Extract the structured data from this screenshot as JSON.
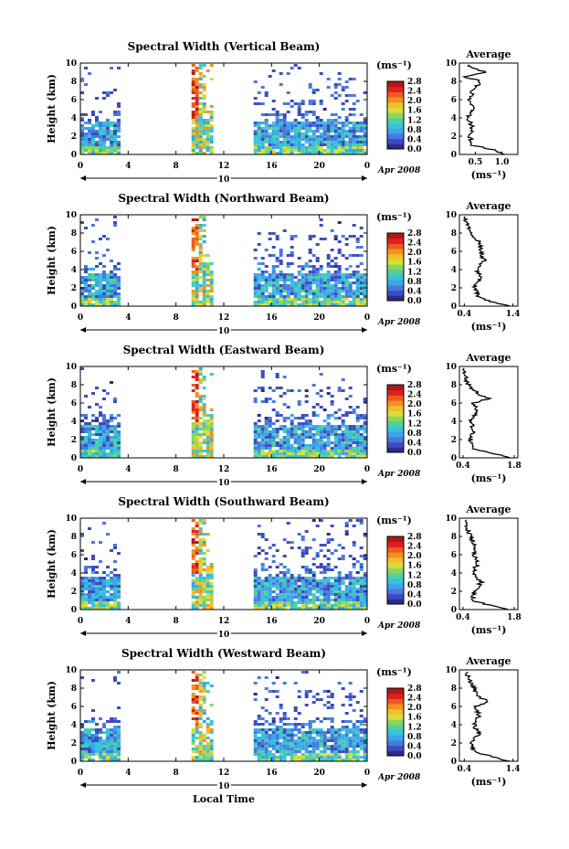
{
  "figure": {
    "common": {
      "height_label": "Height (km)",
      "unit_label": "(ms⁻¹)",
      "date_label": "Apr 2008",
      "day_label": "10",
      "xlabel": "Local Time",
      "avg_title": "Average",
      "avg_xlabel": "(ms⁻¹)"
    },
    "colorbar": {
      "ticks": [
        "0.0",
        "0.4",
        "0.8",
        "1.2",
        "1.6",
        "2.0",
        "2.4",
        "2.8"
      ],
      "colors": [
        "#2b2b8c",
        "#3b4cc0",
        "#4a78e0",
        "#3aa6e8",
        "#37c3d8",
        "#4fd0a0",
        "#8ed65b",
        "#d6df3a",
        "#f0c02a",
        "#f59020",
        "#f05a1e",
        "#e02020",
        "#b01818"
      ]
    }
  },
  "chart_data": [
    {
      "type": "heatmap",
      "title": "Spectral Width (Vertical Beam)",
      "xlabel": "Local Time",
      "ylabel": "Height (km)",
      "xlim": [
        0,
        24
      ],
      "ylim": [
        0,
        10
      ],
      "x_ticks": [
        "0",
        "4",
        "8",
        "12",
        "16",
        "20",
        "0"
      ],
      "y_ticks": [
        "0",
        "2",
        "4",
        "6",
        "8",
        "10"
      ],
      "colorbar_unit": "ms-1",
      "colorbar_range": [
        0.0,
        2.8
      ],
      "data_blocks": [
        [
          0.0,
          3.2
        ],
        [
          9.3,
          11.2
        ],
        [
          14.5,
          24.0
        ]
      ],
      "average_profile": {
        "x_ticks": [
          "0.5",
          "1.0"
        ],
        "xlim": [
          0.2,
          1.3
        ],
        "height_km": [
          0,
          0.5,
          1,
          2,
          3,
          4,
          5,
          6,
          7,
          8,
          8.5,
          9,
          9.5
        ],
        "width_ms": [
          1.05,
          0.85,
          0.45,
          0.4,
          0.45,
          0.35,
          0.45,
          0.4,
          0.45,
          0.6,
          0.3,
          0.7,
          0.4
        ]
      }
    },
    {
      "type": "heatmap",
      "title": "Spectral Width (Northward Beam)",
      "xlabel": "Local Time",
      "ylabel": "Height (km)",
      "xlim": [
        0,
        24
      ],
      "ylim": [
        0,
        10
      ],
      "x_ticks": [
        "0",
        "4",
        "8",
        "12",
        "16",
        "20",
        "0"
      ],
      "y_ticks": [
        "0",
        "2",
        "4",
        "6",
        "8",
        "10"
      ],
      "colorbar_unit": "ms-1",
      "colorbar_range": [
        0.0,
        2.8
      ],
      "data_blocks": [
        [
          0.0,
          3.2
        ],
        [
          9.3,
          11.2
        ],
        [
          14.5,
          24.0
        ]
      ],
      "average_profile": {
        "x_ticks": [
          "0.4",
          "1.4"
        ],
        "xlim": [
          0.3,
          1.5
        ],
        "height_km": [
          0,
          0.5,
          1,
          2,
          3,
          4,
          5,
          6,
          7,
          8,
          9,
          9.7
        ],
        "width_ms": [
          1.3,
          0.95,
          0.7,
          0.6,
          0.75,
          0.65,
          0.8,
          0.75,
          0.7,
          0.55,
          0.45,
          0.4
        ]
      }
    },
    {
      "type": "heatmap",
      "title": "Spectral Width (Eastward Beam)",
      "xlabel": "Local Time",
      "ylabel": "Height (km)",
      "xlim": [
        0,
        24
      ],
      "ylim": [
        0,
        10
      ],
      "x_ticks": [
        "0",
        "4",
        "8",
        "12",
        "16",
        "20",
        "0"
      ],
      "y_ticks": [
        "0",
        "2",
        "4",
        "6",
        "8",
        "10"
      ],
      "colorbar_unit": "ms-1",
      "colorbar_range": [
        0.0,
        2.8
      ],
      "data_blocks": [
        [
          0.0,
          3.2
        ],
        [
          9.3,
          11.2
        ],
        [
          14.5,
          24.0
        ]
      ],
      "average_profile": {
        "x_ticks": [
          "0.4",
          "1.8"
        ],
        "xlim": [
          0.3,
          1.9
        ],
        "height_km": [
          0,
          0.5,
          1,
          2,
          3,
          4,
          5,
          6,
          6.5,
          7,
          8,
          9,
          9.7
        ],
        "width_ms": [
          1.7,
          1.2,
          0.65,
          0.6,
          0.7,
          0.6,
          0.75,
          0.7,
          1.1,
          0.8,
          0.55,
          0.45,
          0.4
        ]
      }
    },
    {
      "type": "heatmap",
      "title": "Spectral Width (Southward Beam)",
      "xlabel": "Local Time",
      "ylabel": "Height (km)",
      "xlim": [
        0,
        24
      ],
      "ylim": [
        0,
        10
      ],
      "x_ticks": [
        "0",
        "4",
        "8",
        "12",
        "16",
        "20",
        "0"
      ],
      "y_ticks": [
        "0",
        "2",
        "4",
        "6",
        "8",
        "10"
      ],
      "colorbar_unit": "ms-1",
      "colorbar_range": [
        0.0,
        2.8
      ],
      "data_blocks": [
        [
          0.0,
          3.2
        ],
        [
          9.3,
          11.2
        ],
        [
          14.5,
          24.0
        ]
      ],
      "average_profile": {
        "x_ticks": [
          "0.4",
          "1.8"
        ],
        "xlim": [
          0.3,
          1.9
        ],
        "height_km": [
          0,
          0.5,
          1,
          2,
          3,
          4,
          5,
          6,
          7,
          8,
          9,
          9.7
        ],
        "width_ms": [
          1.6,
          1.1,
          0.65,
          0.7,
          0.9,
          0.65,
          0.8,
          0.7,
          0.75,
          0.6,
          0.5,
          0.45
        ]
      }
    },
    {
      "type": "heatmap",
      "title": "Spectral Width (Westward Beam)",
      "xlabel": "Local Time",
      "ylabel": "Height (km)",
      "xlim": [
        0,
        24
      ],
      "ylim": [
        0,
        10
      ],
      "x_ticks": [
        "0",
        "4",
        "8",
        "12",
        "16",
        "20",
        "0"
      ],
      "y_ticks": [
        "0",
        "2",
        "4",
        "6",
        "8",
        "10"
      ],
      "colorbar_unit": "ms-1",
      "colorbar_range": [
        0.0,
        2.8
      ],
      "data_blocks": [
        [
          0.0,
          3.2
        ],
        [
          9.3,
          11.2
        ],
        [
          14.5,
          24.0
        ]
      ],
      "average_profile": {
        "x_ticks": [
          "0.4",
          "1.4"
        ],
        "xlim": [
          0.3,
          1.5
        ],
        "height_km": [
          0,
          0.5,
          1,
          2,
          3,
          4,
          5,
          6,
          6.5,
          7,
          8,
          9,
          9.7
        ],
        "width_ms": [
          1.3,
          1.0,
          0.6,
          0.55,
          0.7,
          0.6,
          0.7,
          0.65,
          0.9,
          0.7,
          0.6,
          0.5,
          0.45
        ]
      }
    }
  ]
}
